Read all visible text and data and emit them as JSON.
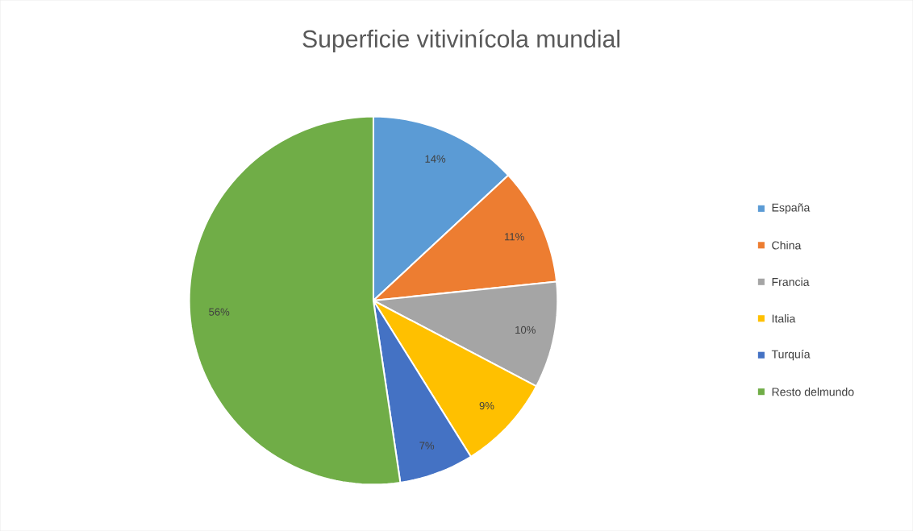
{
  "chart_data": {
    "type": "pie",
    "title": "Superficie vitivinícola mundial",
    "categories": [
      "España",
      "China",
      "Francia",
      "Italia",
      "Turquía",
      "Resto delmundo"
    ],
    "values": [
      14,
      11,
      10,
      9,
      7,
      56
    ],
    "value_labels": [
      "14%",
      "11%",
      "10%",
      "9%",
      "7%",
      "56%"
    ],
    "colors": [
      "#5b9bd5",
      "#ed7d31",
      "#a5a5a5",
      "#ffc000",
      "#4472c4",
      "#70ad47"
    ],
    "legend": "right"
  }
}
